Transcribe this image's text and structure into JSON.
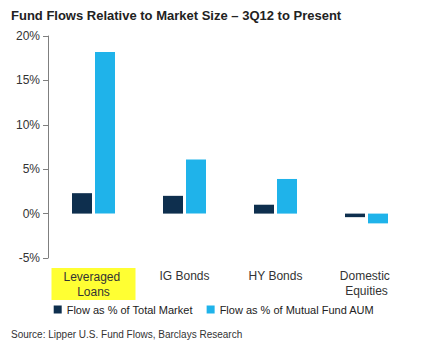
{
  "chart_data": {
    "type": "bar",
    "title": "Fund Flows Relative to Market Size – 3Q12 to Present",
    "source": "Source: Lipper U.S. Fund Flows, Barclays Research",
    "categories": [
      "Leveraged Loans",
      "IG Bonds",
      "HY Bonds",
      "Domestic Equities"
    ],
    "series": [
      {
        "name": "Flow as % of Total Market",
        "color": "#0e2f4e",
        "values": [
          2.3,
          2.0,
          1.0,
          -0.4
        ]
      },
      {
        "name": "Flow as % of Mutual Fund AUM",
        "color": "#1fb3ea",
        "values": [
          18.2,
          6.1,
          3.9,
          -1.1
        ]
      }
    ],
    "ylim": [
      -5,
      20
    ],
    "yticks": [
      {
        "value": -5,
        "label": "-5%"
      },
      {
        "value": 0,
        "label": "0%"
      },
      {
        "value": 5,
        "label": "5%"
      },
      {
        "value": 10,
        "label": "10%"
      },
      {
        "value": 15,
        "label": "15%"
      },
      {
        "value": 20,
        "label": "20%"
      }
    ],
    "grid": false,
    "legend": "bottom",
    "data_labels": false
  }
}
